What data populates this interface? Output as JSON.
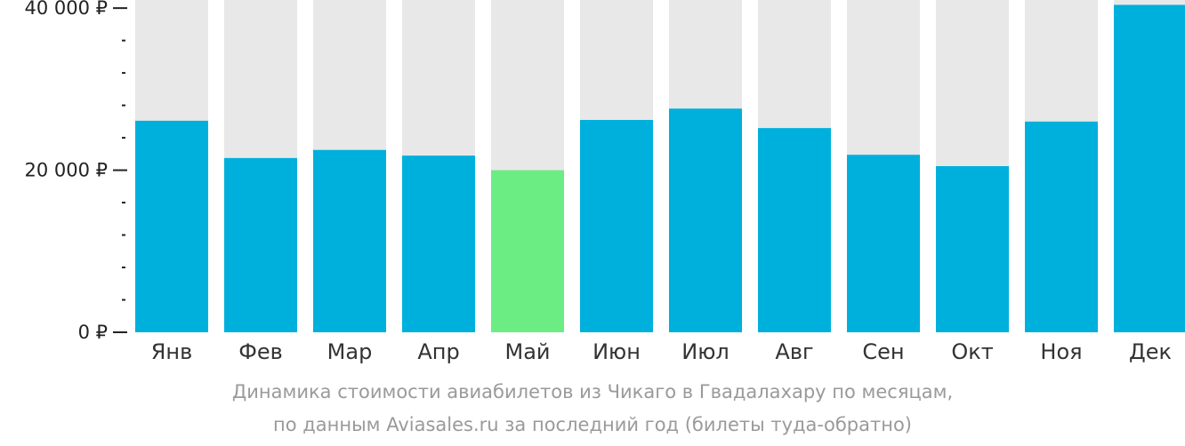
{
  "chart_data": {
    "type": "bar",
    "categories": [
      "Янв",
      "Фев",
      "Мар",
      "Апр",
      "Май",
      "Июн",
      "Июл",
      "Авг",
      "Сен",
      "Окт",
      "Ноя",
      "Дек"
    ],
    "values": [
      26100,
      21500,
      22500,
      21800,
      20000,
      26200,
      27600,
      25200,
      21900,
      20500,
      26000,
      40400
    ],
    "highlight_index": 4,
    "ylim": [
      0,
      41000
    ],
    "yticks": [
      {
        "value": 0,
        "label": "0 ₽"
      },
      {
        "value": 20000,
        "label": "20 000 ₽"
      },
      {
        "value": 40000,
        "label": "40 000 ₽"
      }
    ],
    "minor_tick_step": 4000,
    "title": "",
    "xlabel": "",
    "ylabel": "",
    "grid": false,
    "colors": {
      "bar": "#00b0dc",
      "highlight": "#6ced84",
      "background_bar": "#e8e8e8",
      "axis": "#222222"
    }
  },
  "caption": {
    "line1": "Динамика стоимости авиабилетов из Чикаго в Гвадалахару по месяцам,",
    "line2": "по данным Aviasales.ru за последний год (билеты туда-обратно)"
  }
}
